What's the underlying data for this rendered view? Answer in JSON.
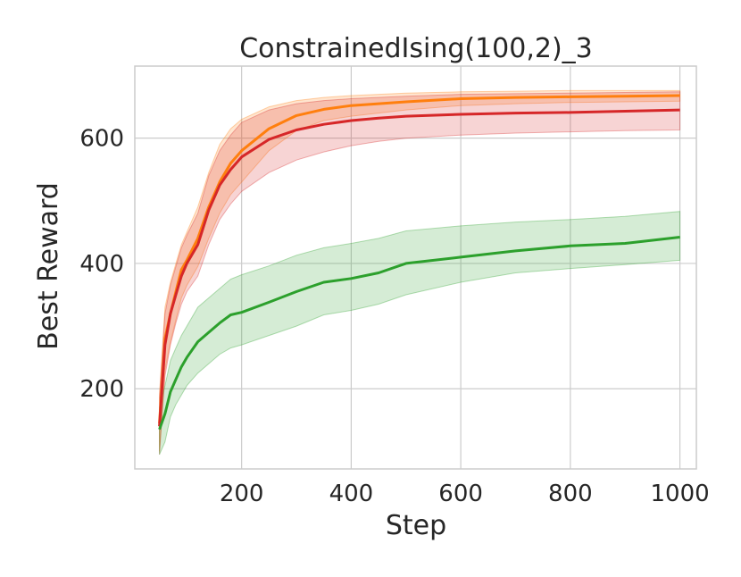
{
  "chart_data": {
    "type": "line",
    "title": "ConstrainedIsing(100,2)_3",
    "xlabel": "Step",
    "ylabel": "Best Reward",
    "xlim": [
      5,
      1030
    ],
    "ylim": [
      72,
      715
    ],
    "xticks": [
      200,
      400,
      600,
      800,
      1000
    ],
    "yticks": [
      200,
      400,
      600
    ],
    "grid": true,
    "series": [
      {
        "color": "#ff7f0e",
        "x": [
          50,
          60,
          70,
          80,
          90,
          100,
          120,
          140,
          160,
          180,
          200,
          250,
          300,
          350,
          400,
          450,
          500,
          600,
          700,
          800,
          900,
          1000
        ],
        "mean": [
          145,
          280,
          320,
          355,
          390,
          405,
          440,
          490,
          530,
          560,
          580,
          615,
          636,
          646,
          652,
          655,
          658,
          663,
          665,
          666,
          667,
          668
        ],
        "upper": [
          190,
          330,
          370,
          400,
          430,
          450,
          490,
          545,
          590,
          615,
          630,
          650,
          660,
          665,
          668,
          670,
          672,
          674,
          675,
          676,
          676,
          676
        ],
        "lower": [
          100,
          230,
          275,
          310,
          345,
          365,
          395,
          440,
          480,
          510,
          530,
          580,
          612,
          628,
          635,
          640,
          645,
          652,
          655,
          657,
          658,
          659
        ]
      },
      {
        "color": "#d62728",
        "x": [
          50,
          60,
          70,
          80,
          90,
          100,
          120,
          140,
          160,
          180,
          200,
          250,
          300,
          350,
          400,
          450,
          500,
          600,
          700,
          800,
          900,
          1000
        ],
        "mean": [
          140,
          270,
          320,
          350,
          380,
          400,
          430,
          485,
          525,
          550,
          570,
          598,
          613,
          622,
          628,
          632,
          635,
          638,
          640,
          641,
          643,
          645
        ],
        "upper": [
          185,
          320,
          365,
          395,
          425,
          445,
          480,
          540,
          580,
          605,
          625,
          645,
          655,
          660,
          663,
          665,
          667,
          670,
          671,
          672,
          673,
          674
        ],
        "lower": [
          95,
          220,
          270,
          305,
          335,
          355,
          380,
          430,
          470,
          495,
          515,
          545,
          565,
          578,
          588,
          595,
          600,
          605,
          608,
          610,
          612,
          613
        ]
      },
      {
        "color": "#2ca02c",
        "x": [
          50,
          60,
          70,
          80,
          90,
          100,
          120,
          140,
          160,
          180,
          200,
          250,
          300,
          350,
          400,
          450,
          500,
          600,
          700,
          800,
          900,
          1000
        ],
        "mean": [
          135,
          160,
          195,
          215,
          235,
          250,
          275,
          290,
          305,
          318,
          322,
          338,
          355,
          370,
          376,
          385,
          400,
          410,
          420,
          428,
          432,
          442
        ],
        "upper": [
          170,
          205,
          245,
          265,
          285,
          300,
          330,
          345,
          360,
          375,
          382,
          396,
          413,
          425,
          432,
          440,
          452,
          460,
          466,
          470,
          475,
          483
        ],
        "lower": [
          95,
          115,
          155,
          175,
          190,
          205,
          225,
          240,
          255,
          265,
          270,
          285,
          300,
          318,
          325,
          335,
          350,
          370,
          385,
          392,
          398,
          405
        ]
      }
    ]
  }
}
